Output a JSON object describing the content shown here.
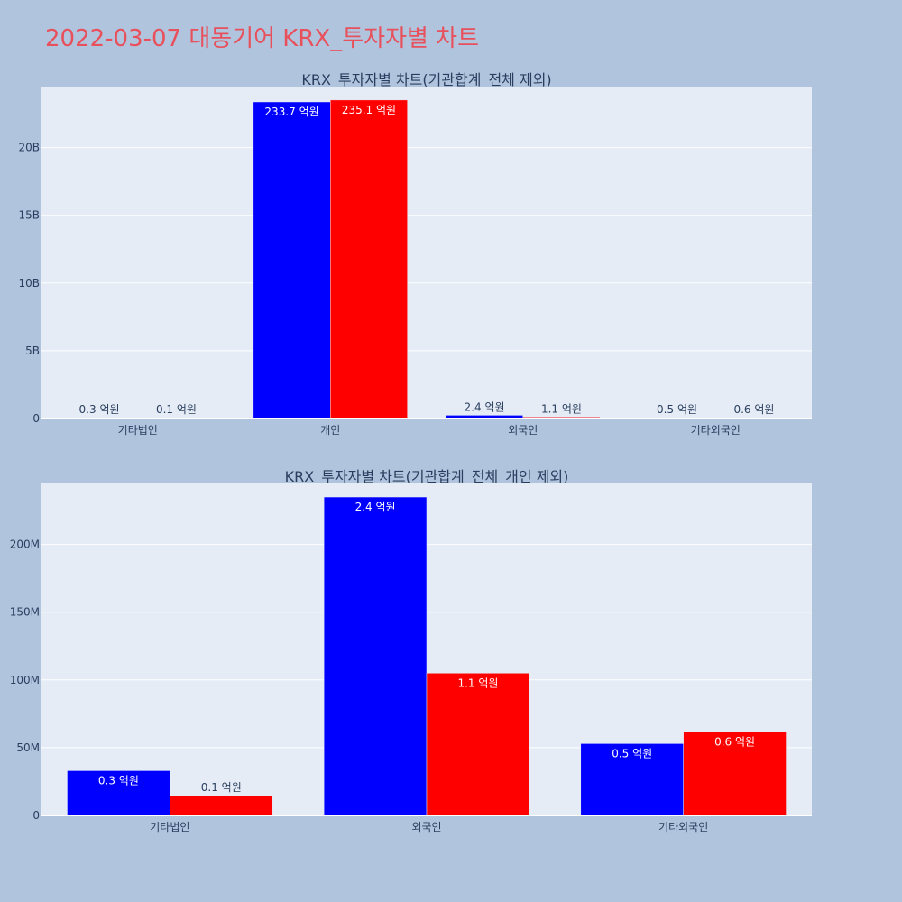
{
  "title": "2022-03-07 대동기어 KRX_투자자별 차트",
  "colors": {
    "background": "#b0c4de",
    "plot_bg": "#e5ecf6",
    "grid": "#ffffff",
    "series_a": "#0000ff",
    "series_b": "#ff0000",
    "title": "#e8505b",
    "text": "#2a3f5f"
  },
  "chart_data": [
    {
      "type": "bar",
      "title": "KRX_투자자별 차트(기관합계_전체 제외)",
      "categories": [
        "기타법인",
        "개인",
        "외국인",
        "기타외국인"
      ],
      "series": [
        {
          "values": [
            30000000,
            23370000000,
            240000000,
            50000000
          ],
          "labels": [
            "0.3 억원",
            "233.7 억원",
            "2.4 억원",
            "0.5 억원"
          ]
        },
        {
          "values": [
            10000000,
            23510000000,
            110000000,
            60000000
          ],
          "labels": [
            "0.1 억원",
            "235.1 억원",
            "1.1 억원",
            "0.6 억원"
          ]
        }
      ],
      "ylim": [
        0,
        24500000000
      ],
      "yticks": [
        0,
        5000000000,
        10000000000,
        15000000000,
        20000000000
      ],
      "ytick_labels": [
        "0",
        "5B",
        "10B",
        "15B",
        "20B"
      ],
      "grid": true
    },
    {
      "type": "bar",
      "title": "KRX_투자자별 차트(기관합계_전체_개인 제외)",
      "categories": [
        "기타법인",
        "외국인",
        "기타외국인"
      ],
      "series": [
        {
          "values": [
            33000000,
            235000000,
            53000000
          ],
          "labels": [
            "0.3 억원",
            "2.4 억원",
            "0.5 억원"
          ]
        },
        {
          "values": [
            14500000,
            105000000,
            61500000
          ],
          "labels": [
            "0.1 억원",
            "1.1 억원",
            "0.6 억원"
          ]
        }
      ],
      "ylim": [
        0,
        245000000
      ],
      "yticks": [
        0,
        50000000,
        100000000,
        150000000,
        200000000
      ],
      "ytick_labels": [
        "0",
        "50M",
        "100M",
        "150M",
        "200M"
      ],
      "grid": true
    }
  ]
}
